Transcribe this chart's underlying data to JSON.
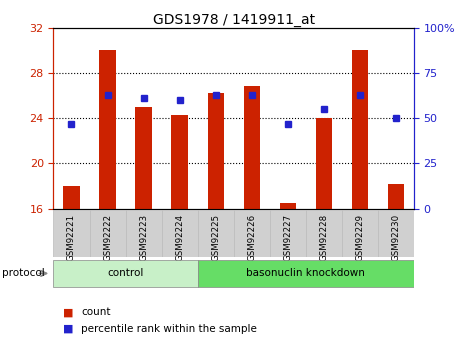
{
  "title": "GDS1978 / 1419911_at",
  "samples": [
    "GSM92221",
    "GSM92222",
    "GSM92223",
    "GSM92224",
    "GSM92225",
    "GSM92226",
    "GSM92227",
    "GSM92228",
    "GSM92229",
    "GSM92230"
  ],
  "red_values": [
    18.0,
    30.0,
    25.0,
    24.3,
    26.2,
    26.8,
    16.5,
    24.0,
    30.0,
    18.2
  ],
  "blue_values": [
    47.0,
    63.0,
    61.0,
    60.0,
    63.0,
    63.0,
    47.0,
    55.0,
    63.0,
    50.0
  ],
  "ylim_left": [
    16,
    32
  ],
  "ylim_right": [
    0,
    100
  ],
  "yticks_left": [
    16,
    20,
    24,
    28,
    32
  ],
  "yticks_right": [
    0,
    25,
    50,
    75,
    100
  ],
  "ytick_labels_right": [
    "0",
    "25",
    "50",
    "75",
    "100%"
  ],
  "grid_yticks": [
    20,
    24,
    28
  ],
  "groups": [
    {
      "label": "control",
      "start": 0,
      "end": 3,
      "color": "#c8f0c8"
    },
    {
      "label": "basonuclin knockdown",
      "start": 4,
      "end": 9,
      "color": "#66dd66"
    }
  ],
  "protocol_label": "protocol",
  "bar_color": "#cc2200",
  "dot_color": "#2222cc",
  "bar_width": 0.45,
  "background_color": "#ffffff",
  "plot_bg_color": "#ffffff",
  "left_tick_color": "#cc2200",
  "right_tick_color": "#2222cc",
  "label_bg_color": "#d0d0d0",
  "label_edge_color": "#bbbbbb"
}
